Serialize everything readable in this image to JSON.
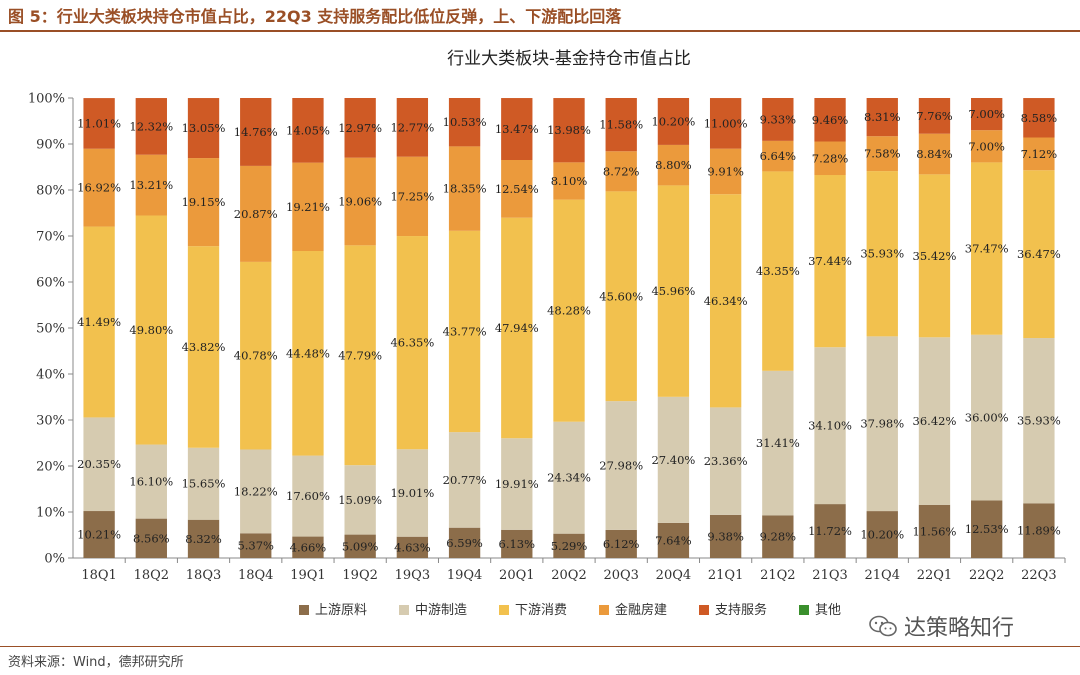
{
  "figure": {
    "title": "图 5：行业大类板块持仓市值占比，22Q3 支持服务配比低位反弹，上、下游配比回落",
    "source": "资料来源：Wind，德邦研究所",
    "watermark": "达策略知行"
  },
  "chart_data": {
    "type": "bar",
    "stacked": true,
    "title": "行业大类板块-基金持仓市值占比",
    "xlabel": "",
    "ylabel": "",
    "ylim": [
      0,
      100
    ],
    "yticks": [
      "0%",
      "10%",
      "20%",
      "30%",
      "40%",
      "50%",
      "60%",
      "70%",
      "80%",
      "90%",
      "100%"
    ],
    "grid": false,
    "legend_position": "bottom",
    "categories": [
      "18Q1",
      "18Q2",
      "18Q3",
      "18Q4",
      "19Q1",
      "19Q2",
      "19Q3",
      "19Q4",
      "20Q1",
      "20Q2",
      "20Q3",
      "20Q4",
      "21Q1",
      "21Q2",
      "21Q3",
      "21Q4",
      "22Q1",
      "22Q2",
      "22Q3"
    ],
    "series": [
      {
        "name": "上游原料",
        "color": "#8c6d4a",
        "values": [
          10.21,
          8.56,
          8.32,
          5.37,
          4.66,
          5.09,
          4.63,
          6.59,
          6.13,
          5.29,
          6.12,
          7.64,
          9.38,
          9.28,
          11.72,
          10.2,
          11.56,
          12.53,
          11.89
        ],
        "labels": [
          "10.21%",
          "8.56%",
          "8.32%",
          "5.37%",
          "4.66%",
          "5.09%",
          "4.63%",
          "6.59%",
          "6.13%",
          "5.29%",
          "6.12%",
          "7.64%",
          "9.38%",
          "9.28%",
          "11.72%",
          "10.20%",
          "11.56%",
          "12.53%",
          "11.89%"
        ]
      },
      {
        "name": "中游制造",
        "color": "#d6cbb0",
        "values": [
          20.35,
          16.1,
          15.65,
          18.22,
          17.6,
          15.09,
          19.01,
          20.77,
          19.91,
          24.34,
          27.98,
          27.4,
          23.36,
          31.41,
          34.1,
          37.98,
          36.42,
          36.0,
          35.93
        ],
        "labels": [
          "20.35%",
          "16.10%",
          "15.65%",
          "18.22%",
          "17.60%",
          "15.09%",
          "19.01%",
          "20.77%",
          "19.91%",
          "24.34%",
          "27.98%",
          "27.40%",
          "23.36%",
          "31.41%",
          "34.10%",
          "37.98%",
          "36.42%",
          "36.00%",
          "35.93%"
        ]
      },
      {
        "name": "下游消费",
        "color": "#f2c14e",
        "values": [
          41.49,
          49.8,
          43.82,
          40.78,
          44.48,
          47.79,
          46.35,
          43.77,
          47.94,
          48.28,
          45.6,
          45.96,
          46.34,
          43.35,
          37.44,
          35.93,
          35.42,
          37.47,
          36.47
        ],
        "labels": [
          "41.49%",
          "49.80%",
          "43.82%",
          "40.78%",
          "44.48%",
          "47.79%",
          "46.35%",
          "43.77%",
          "47.94%",
          "48.28%",
          "45.60%",
          "45.96%",
          "46.34%",
          "43.35%",
          "37.44%",
          "35.93%",
          "35.42%",
          "37.47%",
          "36.47%"
        ]
      },
      {
        "name": "金融房建",
        "color": "#eb9a3c",
        "values": [
          16.92,
          13.21,
          19.15,
          20.87,
          19.21,
          19.06,
          17.25,
          18.35,
          12.54,
          8.1,
          8.72,
          8.8,
          9.91,
          6.64,
          7.28,
          7.58,
          8.84,
          7.0,
          7.12
        ],
        "labels": [
          "16.92%",
          "13.21%",
          "19.15%",
          "20.87%",
          "19.21%",
          "19.06%",
          "17.25%",
          "18.35%",
          "12.54%",
          "8.10%",
          "8.72%",
          "8.80%",
          "9.91%",
          "6.64%",
          "7.28%",
          "7.58%",
          "8.84%",
          "7.00%",
          "7.12%"
        ]
      },
      {
        "name": "支持服务",
        "color": "#cf5a25",
        "values": [
          11.01,
          12.32,
          13.05,
          14.76,
          14.05,
          12.97,
          12.77,
          10.53,
          13.47,
          13.98,
          11.58,
          10.2,
          11.0,
          9.33,
          9.46,
          8.31,
          7.76,
          7.0,
          8.58
        ],
        "labels": [
          "11.01%",
          "12.32%",
          "13.05%",
          "14.76%",
          "14.05%",
          "12.97%",
          "12.77%",
          "10.53%",
          "13.47%",
          "13.98%",
          "11.58%",
          "10.20%",
          "11.00%",
          "9.33%",
          "9.46%",
          "8.31%",
          "7.76%",
          "7.00%",
          "8.58%"
        ]
      },
      {
        "name": "其他",
        "color": "#3a8f2c",
        "values": [
          0,
          0,
          0,
          0,
          0,
          0,
          0,
          0,
          0,
          0,
          0,
          0,
          0,
          0,
          0,
          0,
          0,
          0,
          0
        ]
      }
    ]
  }
}
